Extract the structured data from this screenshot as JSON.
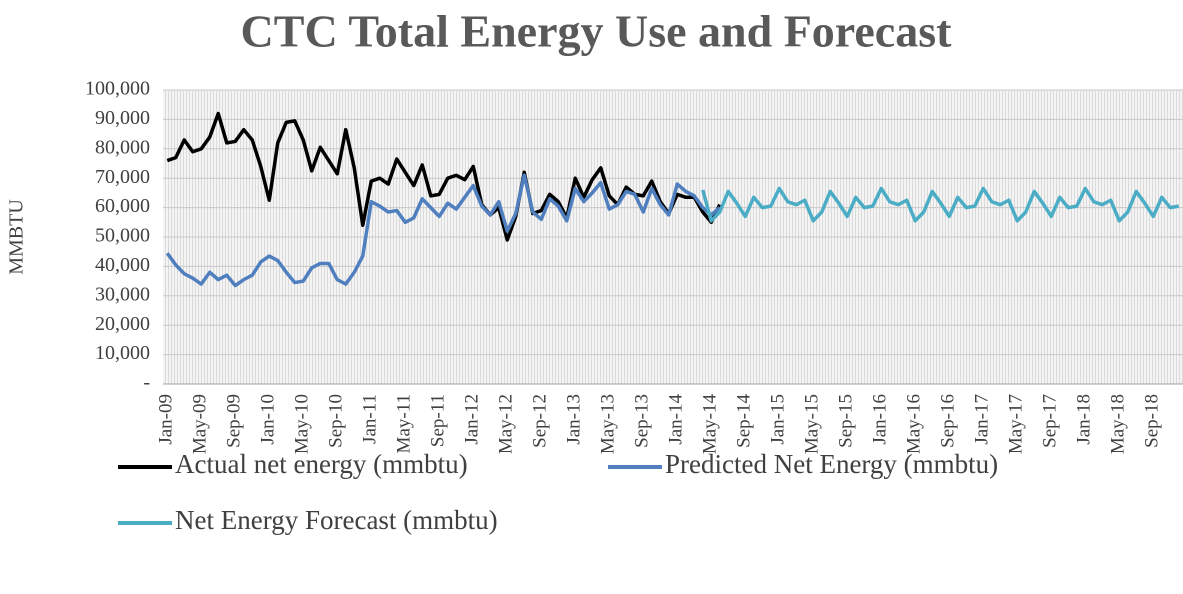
{
  "chart_data": {
    "type": "line",
    "title": "CTC Total Energy Use and Forecast",
    "y_label": "MMBTU",
    "categories": [
      "Jan-09",
      null,
      null,
      null,
      "May-09",
      null,
      null,
      null,
      "Sep-09",
      null,
      null,
      null,
      "Jan-10",
      null,
      null,
      null,
      "May-10",
      null,
      null,
      null,
      "Sep-10",
      null,
      null,
      null,
      "Jan-11",
      null,
      null,
      null,
      "May-11",
      null,
      null,
      null,
      "Sep-11",
      null,
      null,
      null,
      "Jan-12",
      null,
      null,
      null,
      "May-12",
      null,
      null,
      null,
      "Sep-12",
      null,
      null,
      null,
      "Jan-13",
      null,
      null,
      null,
      "May-13",
      null,
      null,
      null,
      "Sep-13",
      null,
      null,
      null,
      "Jan-14",
      null,
      null,
      null,
      "May-14",
      null,
      null,
      null,
      "Sep-14",
      null,
      null,
      null,
      "Jan-15",
      null,
      null,
      null,
      "May-15",
      null,
      null,
      null,
      "Sep-15",
      null,
      null,
      null,
      "Jan-16",
      null,
      null,
      null,
      "May-16",
      null,
      null,
      null,
      "Sep-16",
      null,
      null,
      null,
      "Jan-17",
      null,
      null,
      null,
      "May-17",
      null,
      null,
      null,
      "Sep-17",
      null,
      null,
      null,
      "Jan-18",
      null,
      null,
      null,
      "May-18",
      null,
      null,
      null,
      "Sep-18",
      null,
      null,
      null
    ],
    "series": [
      {
        "name": "Actual net energy (mmbtu)",
        "color": "#000000",
        "values": [
          76000,
          77000,
          83000,
          79000,
          80000,
          84000,
          92000,
          82000,
          82500,
          86500,
          83000,
          74000,
          62500,
          82000,
          89000,
          89500,
          83000,
          72500,
          80500,
          76000,
          71500,
          86500,
          73500,
          54000,
          69000,
          70000,
          68000,
          76500,
          72000,
          67500,
          74500,
          64000,
          64500,
          70000,
          71000,
          69500,
          74000,
          61000,
          57500,
          60000,
          49000,
          57000,
          72000,
          58000,
          59000,
          64500,
          62000,
          56500,
          70000,
          63500,
          69500,
          73500,
          64000,
          61000,
          67000,
          64500,
          64000,
          69000,
          62000,
          58000,
          64500,
          63500,
          63500,
          58500,
          55000,
          61000,
          null,
          null,
          null,
          null,
          null,
          null,
          null,
          null,
          null,
          null,
          null,
          null,
          null,
          null,
          null,
          null,
          null,
          null,
          null,
          null,
          null,
          null,
          null,
          null,
          null,
          null,
          null,
          null,
          null,
          null,
          null,
          null,
          null,
          null,
          null,
          null,
          null,
          null,
          null,
          null,
          null,
          null,
          null,
          null,
          null,
          null,
          null,
          null,
          null,
          null,
          null,
          null,
          null,
          null
        ]
      },
      {
        "name": "Predicted Net Energy (mmbtu)",
        "color": "#4f7fbf",
        "values": [
          44500,
          40500,
          37500,
          36000,
          34000,
          38000,
          35500,
          37000,
          33500,
          35500,
          37000,
          41500,
          43500,
          42000,
          38000,
          34500,
          35000,
          39500,
          41000,
          41000,
          35500,
          34000,
          38000,
          43500,
          62000,
          60500,
          58500,
          59000,
          55000,
          56500,
          63000,
          60000,
          57000,
          61500,
          59500,
          63500,
          67500,
          60500,
          57500,
          62000,
          52000,
          58000,
          71000,
          58500,
          56000,
          63000,
          60500,
          55500,
          66500,
          62000,
          65000,
          68500,
          59500,
          61000,
          65500,
          64500,
          58500,
          66500,
          61000,
          57500,
          68000,
          65500,
          64000,
          60000,
          57500,
          60000,
          null,
          null,
          null,
          null,
          null,
          null,
          null,
          null,
          null,
          null,
          null,
          null,
          null,
          null,
          null,
          null,
          null,
          null,
          null,
          null,
          null,
          null,
          null,
          null,
          null,
          null,
          null,
          null,
          null,
          null,
          null,
          null,
          null,
          null,
          null,
          null,
          null,
          null,
          null,
          null,
          null,
          null,
          null,
          null,
          null,
          null,
          null,
          null,
          null,
          null,
          null,
          null,
          null,
          null
        ]
      },
      {
        "name": "Net Energy Forecast (mmbtu)",
        "color": "#4bacc6",
        "values": [
          null,
          null,
          null,
          null,
          null,
          null,
          null,
          null,
          null,
          null,
          null,
          null,
          null,
          null,
          null,
          null,
          null,
          null,
          null,
          null,
          null,
          null,
          null,
          null,
          null,
          null,
          null,
          null,
          null,
          null,
          null,
          null,
          null,
          null,
          null,
          null,
          null,
          null,
          null,
          null,
          null,
          null,
          null,
          null,
          null,
          null,
          null,
          null,
          null,
          null,
          null,
          null,
          null,
          null,
          null,
          null,
          null,
          null,
          null,
          null,
          null,
          null,
          null,
          66000,
          55500,
          58500,
          65500,
          61500,
          57000,
          63500,
          60000,
          60500,
          66500,
          62000,
          61000,
          62500,
          55500,
          58500,
          65500,
          61500,
          57000,
          63500,
          60000,
          60500,
          66500,
          62000,
          61000,
          62500,
          55500,
          58500,
          65500,
          61500,
          57000,
          63500,
          60000,
          60500,
          66500,
          62000,
          61000,
          62500,
          55500,
          58500,
          65500,
          61500,
          57000,
          63500,
          60000,
          60500,
          66500,
          62000,
          61000,
          62500,
          55500,
          58500,
          65500,
          61500,
          57000,
          63500,
          60000,
          60500
        ]
      }
    ],
    "ylim": [
      0,
      100000
    ],
    "yticks": [
      {
        "value": 0,
        "label": "-"
      },
      {
        "value": 10000,
        "label": "10,000"
      },
      {
        "value": 20000,
        "label": "20,000"
      },
      {
        "value": 30000,
        "label": "30,000"
      },
      {
        "value": 40000,
        "label": "40,000"
      },
      {
        "value": 50000,
        "label": "50,000"
      },
      {
        "value": 60000,
        "label": "60,000"
      },
      {
        "value": 70000,
        "label": "70,000"
      },
      {
        "value": 80000,
        "label": "80,000"
      },
      {
        "value": 90000,
        "label": "90,000"
      },
      {
        "value": 100000,
        "label": "100,000"
      }
    ],
    "grid": true,
    "legend": "bottom"
  }
}
